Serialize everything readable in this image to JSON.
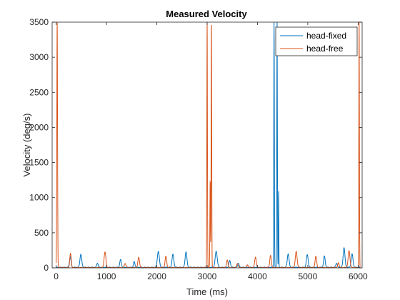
{
  "chart_data": {
    "type": "line",
    "title": "Measured Velocity",
    "xlabel": "Time (ms)",
    "ylabel": "Velocity (deg/s)",
    "xlim": [
      -80,
      6080
    ],
    "ylim": [
      0,
      3500
    ],
    "xticks": [
      0,
      1000,
      2000,
      3000,
      4000,
      5000,
      6000
    ],
    "yticks": [
      0,
      500,
      1000,
      1500,
      2000,
      2500,
      3000,
      3500
    ],
    "grid": false,
    "legend_position": "top-right",
    "series": [
      {
        "name": "head-fixed",
        "color": "#0072BD",
        "baseline": 8,
        "peaks": [
          {
            "t": 280,
            "h": 150,
            "w": 22
          },
          {
            "t": 490,
            "h": 185,
            "w": 25
          },
          {
            "t": 820,
            "h": 60,
            "w": 20
          },
          {
            "t": 1280,
            "h": 110,
            "w": 22
          },
          {
            "t": 1550,
            "h": 80,
            "w": 20
          },
          {
            "t": 2030,
            "h": 225,
            "w": 28
          },
          {
            "t": 2320,
            "h": 185,
            "w": 25
          },
          {
            "t": 2580,
            "h": 220,
            "w": 25
          },
          {
            "t": 3180,
            "h": 230,
            "w": 28
          },
          {
            "t": 3450,
            "h": 95,
            "w": 22
          },
          {
            "t": 3620,
            "h": 60,
            "w": 20
          },
          {
            "t": 4330,
            "h": 3500,
            "w": 8
          },
          {
            "t": 4390,
            "h": 3500,
            "w": 8
          },
          {
            "t": 4420,
            "h": 1080,
            "w": 6
          },
          {
            "t": 4610,
            "h": 190,
            "w": 25
          },
          {
            "t": 4990,
            "h": 180,
            "w": 25
          },
          {
            "t": 5330,
            "h": 160,
            "w": 22
          },
          {
            "t": 5570,
            "h": 60,
            "w": 20
          },
          {
            "t": 5720,
            "h": 280,
            "w": 25
          },
          {
            "t": 5880,
            "h": 190,
            "w": 25
          }
        ]
      },
      {
        "name": "head-free",
        "color": "#D95319",
        "baseline": 5,
        "peaks": [
          {
            "t": 20,
            "h": 3500,
            "w": 10
          },
          {
            "t": 285,
            "h": 200,
            "w": 20
          },
          {
            "t": 970,
            "h": 220,
            "w": 25
          },
          {
            "t": 1370,
            "h": 60,
            "w": 20
          },
          {
            "t": 1640,
            "h": 150,
            "w": 22
          },
          {
            "t": 2180,
            "h": 160,
            "w": 22
          },
          {
            "t": 3000,
            "h": 3500,
            "w": 8
          },
          {
            "t": 3060,
            "h": 1230,
            "w": 8
          },
          {
            "t": 3085,
            "h": 3500,
            "w": 8
          },
          {
            "t": 3400,
            "h": 110,
            "w": 20
          },
          {
            "t": 3600,
            "h": 60,
            "w": 20
          },
          {
            "t": 3800,
            "h": 40,
            "w": 20
          },
          {
            "t": 3960,
            "h": 150,
            "w": 22
          },
          {
            "t": 4260,
            "h": 170,
            "w": 22
          },
          {
            "t": 4770,
            "h": 230,
            "w": 25
          },
          {
            "t": 5160,
            "h": 160,
            "w": 22
          },
          {
            "t": 5610,
            "h": 70,
            "w": 20
          },
          {
            "t": 5820,
            "h": 240,
            "w": 25
          },
          {
            "t": 6020,
            "h": 3500,
            "w": 8
          }
        ]
      }
    ]
  }
}
